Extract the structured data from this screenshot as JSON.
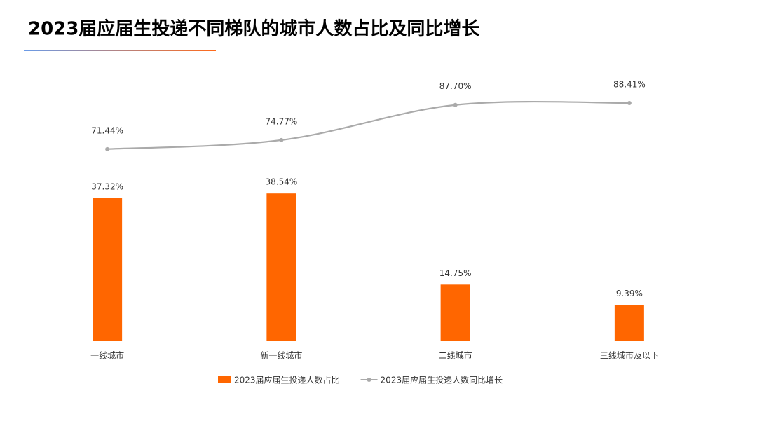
{
  "chart_data": {
    "type": "bar",
    "title": "2023届应届生投递不同梯队的城市人数占比及同比增长",
    "categories": [
      "一线城市",
      "新一线城市",
      "二线城市",
      "三线城市及以下"
    ],
    "series": [
      {
        "name": "2023届应届生投递人数占比",
        "type": "bar",
        "color": "#ff6600",
        "values": [
          37.32,
          38.54,
          14.75,
          9.39
        ],
        "value_labels": [
          "37.32%",
          "38.54%",
          "14.75%",
          "9.39%"
        ]
      },
      {
        "name": "2023届应届生投递人数同比增长",
        "type": "line",
        "color": "#aaaaaa",
        "values": [
          71.44,
          74.77,
          87.7,
          88.41
        ],
        "value_labels": [
          "71.44%",
          "74.77%",
          "87.70%",
          "88.41%"
        ]
      }
    ]
  }
}
